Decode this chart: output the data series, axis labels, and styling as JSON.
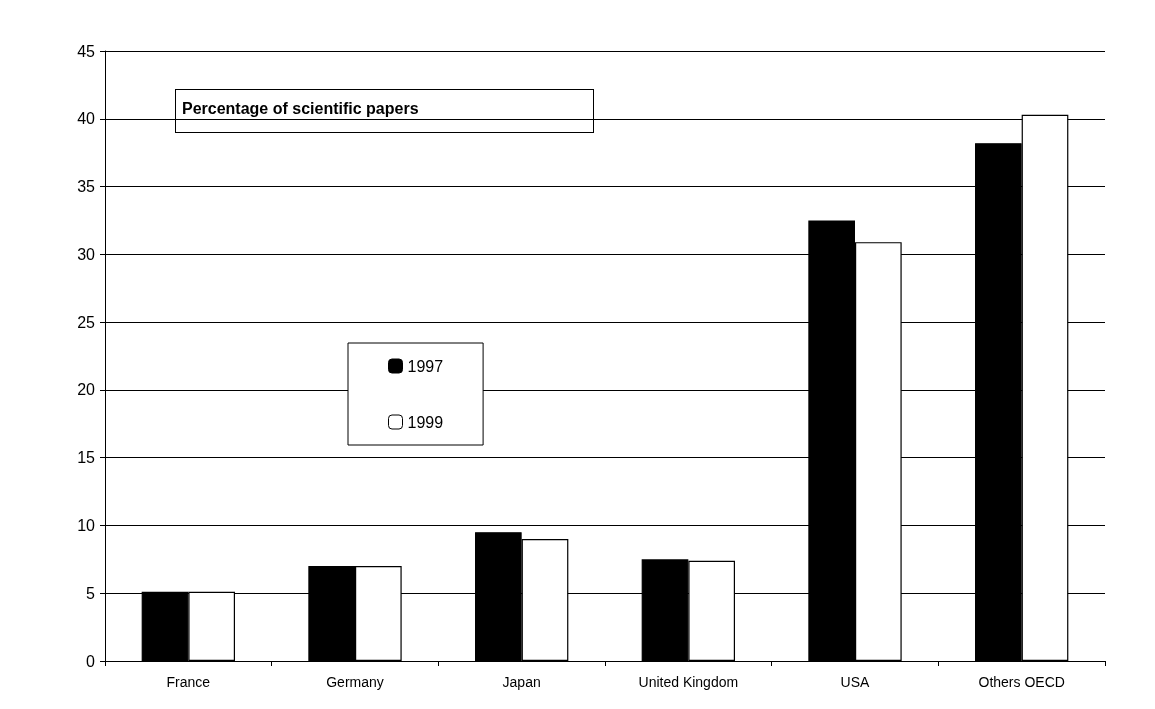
{
  "chart_data": {
    "type": "bar",
    "title": "Percentage of scientific papers",
    "categories": [
      "France",
      "Germany",
      "Japan",
      "United Kingdom",
      "USA",
      "Others OECD"
    ],
    "series": [
      {
        "name": "1997",
        "color": "#000000",
        "values": [
          5.1,
          7.0,
          9.5,
          7.5,
          32.5,
          38.2
        ]
      },
      {
        "name": "1999",
        "color": "#ffffff",
        "values": [
          5.1,
          7.0,
          9.0,
          7.4,
          30.9,
          40.3
        ]
      }
    ],
    "ylim": [
      0,
      45
    ],
    "yticks": [
      0,
      5,
      10,
      15,
      20,
      25,
      30,
      35,
      40,
      45
    ],
    "grid": "y",
    "legend": "left"
  }
}
